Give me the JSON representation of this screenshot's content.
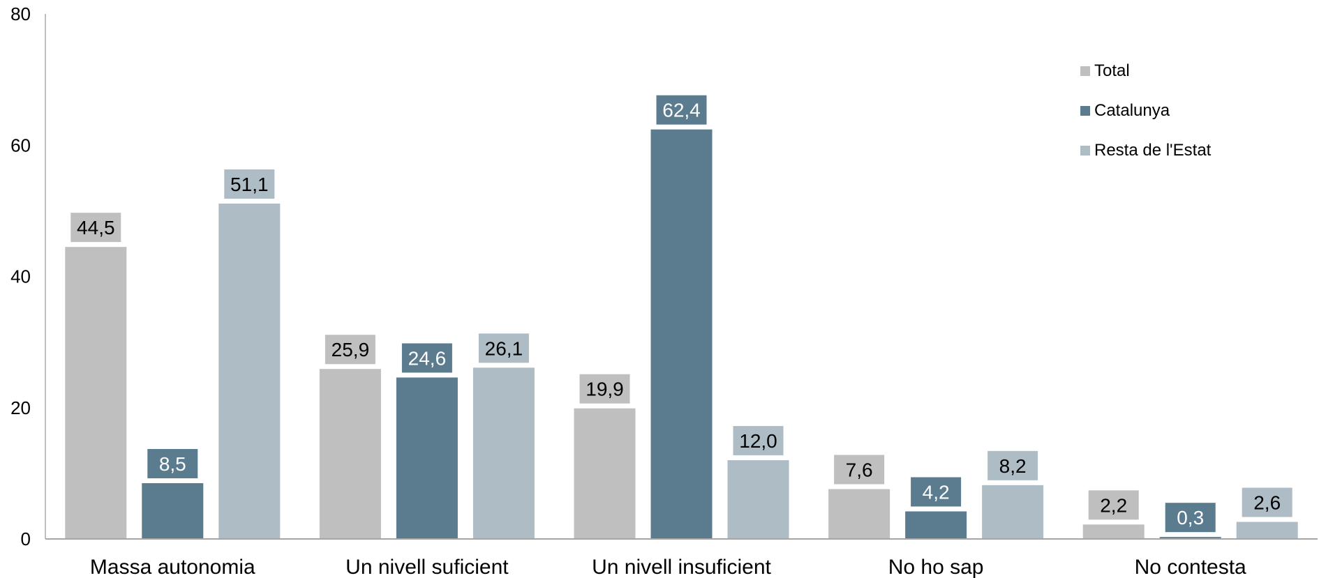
{
  "chart_data": {
    "type": "bar",
    "categories": [
      "Massa autonomia",
      "Un nivell suficient",
      "Un nivell insuficient",
      "No ho sap",
      "No contesta"
    ],
    "series": [
      {
        "name": "Total",
        "color": "#bfbfbf",
        "label_text_color": "#000000",
        "values": [
          44.5,
          25.9,
          19.9,
          7.6,
          2.2
        ],
        "labels": [
          "44,5",
          "25,9",
          "19,9",
          "7,6",
          "2,2"
        ]
      },
      {
        "name": "Catalunya",
        "color": "#5b7b8f",
        "label_text_color": "#ffffff",
        "values": [
          8.5,
          24.6,
          62.4,
          4.2,
          0.3
        ],
        "labels": [
          "8,5",
          "24,6",
          "62,4",
          "4,2",
          "0,3"
        ]
      },
      {
        "name": "Resta de l'Estat",
        "color": "#aebcc6",
        "label_text_color": "#000000",
        "values": [
          51.1,
          26.1,
          12.0,
          8.2,
          2.6
        ],
        "labels": [
          "51,1",
          "26,1",
          "12,0",
          "8,2",
          "2,6"
        ]
      }
    ],
    "y_ticks": [
      "0",
      "20",
      "40",
      "60",
      "80"
    ],
    "ylim": [
      0,
      80
    ],
    "grid": false,
    "legend_position": "top-right"
  }
}
